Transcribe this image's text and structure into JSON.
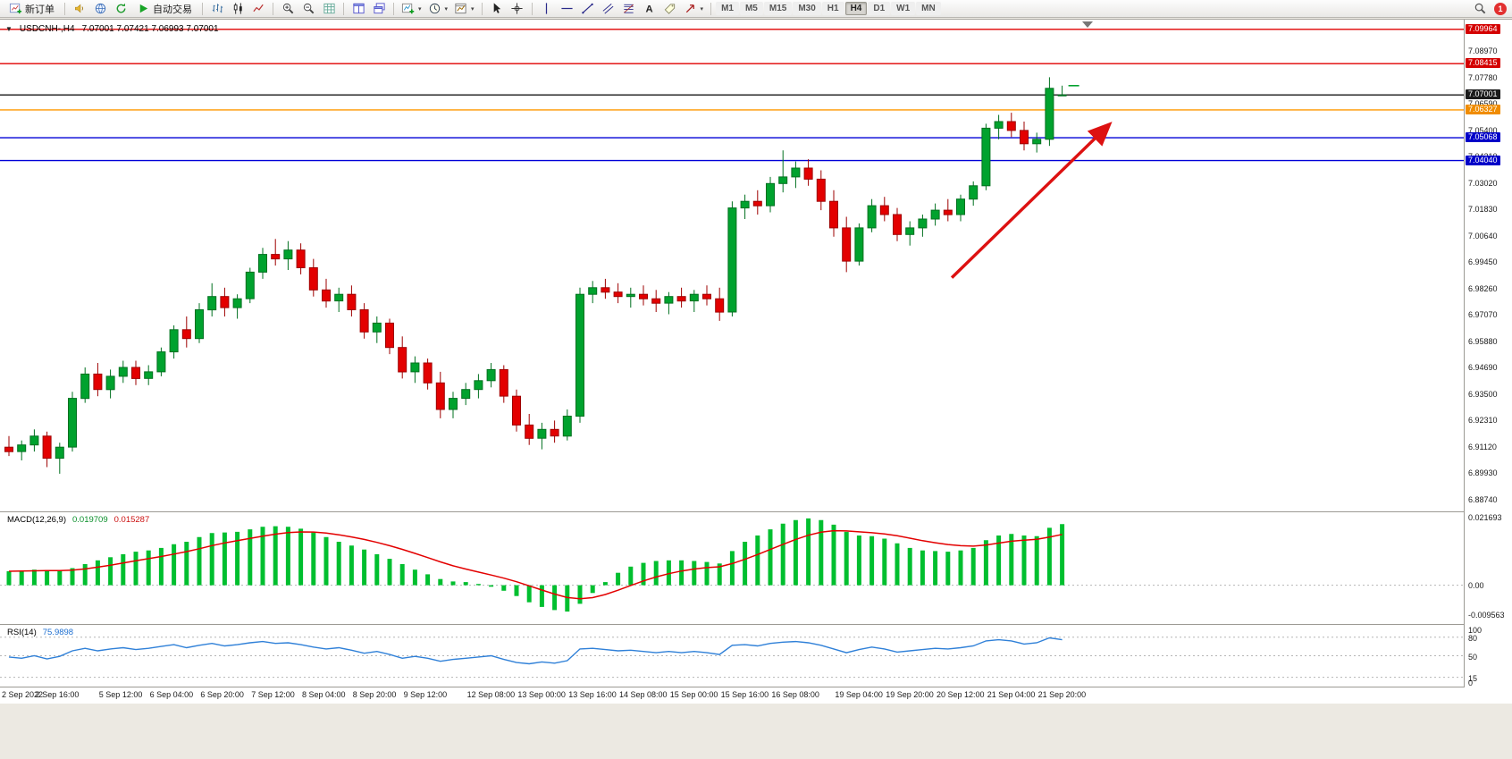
{
  "toolbar": {
    "new_order_label": "新订单",
    "auto_trading_label": "自动交易",
    "timeframes": [
      "M1",
      "M5",
      "M15",
      "M30",
      "H1",
      "H4",
      "D1",
      "W1",
      "MN"
    ],
    "active_timeframe": "H4",
    "notification_count": "1"
  },
  "quote": {
    "symbol_period": "USDCNH-,H4",
    "ohlc": "7.07001 7.07421 7.06993 7.07001"
  },
  "colors": {
    "up": "#00a22e",
    "up_border": "#00701f",
    "down": "#e30000",
    "down_border": "#9e0000",
    "macd_hist": "#00bf2f",
    "macd_signal": "#e30000",
    "rsi_line": "#2f80d8",
    "arrow": "#dd1111"
  },
  "chart_data": [
    {
      "type": "candlestick",
      "title": "USDCNH-,H4",
      "ylim": [
        6.882,
        7.104
      ],
      "ask_tick_price": 7.07421,
      "price_axis_labels": [
        "7.08970",
        "7.07780",
        "7.06590",
        "7.05400",
        "7.04210",
        "7.03020",
        "7.01830",
        "7.00640",
        "6.99450",
        "6.98260",
        "6.97070",
        "6.95880",
        "6.94690",
        "6.93500",
        "6.92310",
        "6.91120",
        "6.89930",
        "6.88740"
      ],
      "hlines": [
        {
          "price": 7.09964,
          "label": "7.09964",
          "line_color": "#e00000",
          "badge_color": "#d40000"
        },
        {
          "price": 7.08415,
          "label": "7.08415",
          "line_color": "#e00000",
          "badge_color": "#d40000"
        },
        {
          "price": 7.07001,
          "label": "7.07001",
          "line_color": "#1a1a1a",
          "badge_color": "#1a1a1a"
        },
        {
          "price": 7.06327,
          "label": "7.06327",
          "line_color": "#ff9800",
          "badge_color": "#f08c00"
        },
        {
          "price": 7.05068,
          "label": "7.05068",
          "line_color": "#0000d8",
          "badge_color": "#0000c8"
        },
        {
          "price": 7.0404,
          "label": "7.04040",
          "line_color": "#0000d8",
          "badge_color": "#0000c8"
        }
      ],
      "trend_arrow": {
        "from_bar": 74.3,
        "from_price": 6.9875,
        "to_bar": 86.6,
        "to_price": 7.056
      },
      "time_labels": [
        {
          "text": "2 Sep 2022",
          "bar": 0
        },
        {
          "text": "2 Sep 16:00",
          "bar": 4
        },
        {
          "text": "5 Sep 12:00",
          "bar": 9
        },
        {
          "text": "6 Sep 04:00",
          "bar": 13
        },
        {
          "text": "6 Sep 20:00",
          "bar": 17
        },
        {
          "text": "7 Sep 12:00",
          "bar": 21
        },
        {
          "text": "8 Sep 04:00",
          "bar": 25
        },
        {
          "text": "8 Sep 20:00",
          "bar": 29
        },
        {
          "text": "9 Sep 12:00",
          "bar": 33
        },
        {
          "text": "12 Sep 08:00",
          "bar": 38
        },
        {
          "text": "13 Sep 00:00",
          "bar": 42
        },
        {
          "text": "13 Sep 16:00",
          "bar": 46
        },
        {
          "text": "14 Sep 08:00",
          "bar": 50
        },
        {
          "text": "15 Sep 00:00",
          "bar": 54
        },
        {
          "text": "15 Sep 16:00",
          "bar": 58
        },
        {
          "text": "16 Sep 08:00",
          "bar": 62
        },
        {
          "text": "19 Sep 04:00",
          "bar": 67
        },
        {
          "text": "19 Sep 20:00",
          "bar": 71
        },
        {
          "text": "20 Sep 12:00",
          "bar": 75
        },
        {
          "text": "21 Sep 04:00",
          "bar": 79
        },
        {
          "text": "21 Sep 20:00",
          "bar": 83
        }
      ],
      "ohlc": [
        [
          6.911,
          6.916,
          6.907,
          6.909
        ],
        [
          6.909,
          6.914,
          6.905,
          6.912
        ],
        [
          6.912,
          6.919,
          6.909,
          6.916
        ],
        [
          6.916,
          6.918,
          6.902,
          6.906
        ],
        [
          6.906,
          6.913,
          6.899,
          6.911
        ],
        [
          6.911,
          6.936,
          6.909,
          6.933
        ],
        [
          6.933,
          6.947,
          6.931,
          6.944
        ],
        [
          6.944,
          6.949,
          6.934,
          6.937
        ],
        [
          6.937,
          6.946,
          6.933,
          6.943
        ],
        [
          6.943,
          6.95,
          6.94,
          6.947
        ],
        [
          6.947,
          6.95,
          6.939,
          6.942
        ],
        [
          6.942,
          6.948,
          6.939,
          6.945
        ],
        [
          6.945,
          6.956,
          6.943,
          6.954
        ],
        [
          6.954,
          6.966,
          6.951,
          6.964
        ],
        [
          6.964,
          6.97,
          6.956,
          6.96
        ],
        [
          6.96,
          6.976,
          6.958,
          6.973
        ],
        [
          6.973,
          6.985,
          6.97,
          6.979
        ],
        [
          6.979,
          6.983,
          6.97,
          6.974
        ],
        [
          6.974,
          6.98,
          6.969,
          6.978
        ],
        [
          6.978,
          6.992,
          6.976,
          6.99
        ],
        [
          6.99,
          7.001,
          6.987,
          6.998
        ],
        [
          6.998,
          7.005,
          6.993,
          6.996
        ],
        [
          6.996,
          7.004,
          6.991,
          7.0
        ],
        [
          7.0,
          7.003,
          6.989,
          6.992
        ],
        [
          6.992,
          6.996,
          6.979,
          6.982
        ],
        [
          6.982,
          6.987,
          6.974,
          6.977
        ],
        [
          6.977,
          6.983,
          6.972,
          6.98
        ],
        [
          6.98,
          6.984,
          6.97,
          6.973
        ],
        [
          6.973,
          6.976,
          6.96,
          6.963
        ],
        [
          6.963,
          6.97,
          6.958,
          6.967
        ],
        [
          6.967,
          6.969,
          6.953,
          6.956
        ],
        [
          6.956,
          6.961,
          6.942,
          6.945
        ],
        [
          6.945,
          6.952,
          6.94,
          6.949
        ],
        [
          6.949,
          6.951,
          6.937,
          6.94
        ],
        [
          6.94,
          6.945,
          6.924,
          6.928
        ],
        [
          6.928,
          6.936,
          6.924,
          6.933
        ],
        [
          6.933,
          6.94,
          6.93,
          6.937
        ],
        [
          6.937,
          6.944,
          6.933,
          6.941
        ],
        [
          6.941,
          6.949,
          6.938,
          6.946
        ],
        [
          6.946,
          6.948,
          6.931,
          6.934
        ],
        [
          6.934,
          6.937,
          6.918,
          6.921
        ],
        [
          6.921,
          6.926,
          6.912,
          6.915
        ],
        [
          6.915,
          6.922,
          6.91,
          6.919
        ],
        [
          6.919,
          6.923,
          6.913,
          6.916
        ],
        [
          6.916,
          6.928,
          6.914,
          6.925
        ],
        [
          6.925,
          6.983,
          6.922,
          6.98
        ],
        [
          6.98,
          6.986,
          6.976,
          6.983
        ],
        [
          6.983,
          6.987,
          6.978,
          6.981
        ],
        [
          6.981,
          6.985,
          6.976,
          6.979
        ],
        [
          6.979,
          6.983,
          6.974,
          6.98
        ],
        [
          6.98,
          6.984,
          6.975,
          6.978
        ],
        [
          6.978,
          6.982,
          6.972,
          6.976
        ],
        [
          6.976,
          6.981,
          6.971,
          6.979
        ],
        [
          6.979,
          6.983,
          6.974,
          6.977
        ],
        [
          6.977,
          6.982,
          6.972,
          6.98
        ],
        [
          6.98,
          6.984,
          6.975,
          6.978
        ],
        [
          6.978,
          6.983,
          6.968,
          6.972
        ],
        [
          6.972,
          7.022,
          6.97,
          7.019
        ],
        [
          7.019,
          7.025,
          7.014,
          7.022
        ],
        [
          7.022,
          7.027,
          7.016,
          7.02
        ],
        [
          7.02,
          7.033,
          7.017,
          7.03
        ],
        [
          7.03,
          7.045,
          7.026,
          7.033
        ],
        [
          7.033,
          7.04,
          7.028,
          7.037
        ],
        [
          7.037,
          7.041,
          7.029,
          7.032
        ],
        [
          7.032,
          7.036,
          7.018,
          7.022
        ],
        [
          7.022,
          7.027,
          7.006,
          7.01
        ],
        [
          7.01,
          7.015,
          6.99,
          6.995
        ],
        [
          6.995,
          7.012,
          6.993,
          7.01
        ],
        [
          7.01,
          7.023,
          7.008,
          7.02
        ],
        [
          7.02,
          7.024,
          7.013,
          7.016
        ],
        [
          7.016,
          7.019,
          7.004,
          7.007
        ],
        [
          7.007,
          7.013,
          7.002,
          7.01
        ],
        [
          7.01,
          7.016,
          7.006,
          7.014
        ],
        [
          7.014,
          7.021,
          7.011,
          7.018
        ],
        [
          7.018,
          7.023,
          7.013,
          7.016
        ],
        [
          7.016,
          7.025,
          7.013,
          7.023
        ],
        [
          7.023,
          7.031,
          7.02,
          7.029
        ],
        [
          7.029,
          7.057,
          7.027,
          7.055
        ],
        [
          7.055,
          7.061,
          7.05,
          7.058
        ],
        [
          7.058,
          7.062,
          7.051,
          7.054
        ],
        [
          7.054,
          7.058,
          7.045,
          7.048
        ],
        [
          7.048,
          7.053,
          7.044,
          7.05
        ],
        [
          7.05,
          7.078,
          7.047,
          7.073
        ],
        [
          7.07001,
          7.07421,
          7.06993,
          7.07001
        ]
      ]
    },
    {
      "type": "bar",
      "name": "MACD(12,26,9)",
      "current_values": [
        "0.019709",
        "0.015287"
      ],
      "ylim": [
        -0.0125,
        0.0235
      ],
      "signal_period": 9,
      "axis_labels": [
        {
          "text": "0.021693",
          "value": 0.021693
        },
        {
          "text": "0.00",
          "value": 0
        },
        {
          "text": "-0.009563",
          "value": -0.009563
        }
      ],
      "values": [
        0.0045,
        0.0047,
        0.005,
        0.0049,
        0.0048,
        0.0055,
        0.0068,
        0.008,
        0.009,
        0.01,
        0.0108,
        0.0112,
        0.012,
        0.0132,
        0.014,
        0.0155,
        0.0168,
        0.017,
        0.0172,
        0.018,
        0.0188,
        0.019,
        0.0188,
        0.0182,
        0.017,
        0.0155,
        0.014,
        0.0128,
        0.0115,
        0.01,
        0.0085,
        0.0068,
        0.005,
        0.0035,
        0.002,
        0.0012,
        0.001,
        0.0004,
        -0.0005,
        -0.0018,
        -0.0035,
        -0.0055,
        -0.007,
        -0.008,
        -0.0085,
        -0.006,
        -0.0025,
        0.001,
        0.004,
        0.006,
        0.0072,
        0.0078,
        0.008,
        0.008,
        0.0078,
        0.0075,
        0.007,
        0.011,
        0.014,
        0.016,
        0.018,
        0.0198,
        0.021,
        0.0215,
        0.021,
        0.0195,
        0.0172,
        0.016,
        0.0158,
        0.015,
        0.0135,
        0.012,
        0.0112,
        0.011,
        0.0108,
        0.0112,
        0.012,
        0.0145,
        0.016,
        0.0165,
        0.016,
        0.0158,
        0.0185,
        0.019709
      ]
    },
    {
      "type": "line",
      "name": "RSI(14)",
      "current_value": "75.9898",
      "ylim": [
        0,
        100
      ],
      "levels": [
        80,
        50,
        15
      ],
      "axis_labels": [
        {
          "text": "100",
          "value": 100
        },
        {
          "text": "80",
          "value": 80
        },
        {
          "text": "50",
          "value": 50
        },
        {
          "text": "15",
          "value": 15
        },
        {
          "text": "0",
          "value": 0
        }
      ],
      "values": [
        48,
        46,
        50,
        45,
        49,
        58,
        62,
        58,
        61,
        63,
        60,
        62,
        65,
        68,
        63,
        67,
        70,
        66,
        68,
        71,
        73,
        70,
        71,
        68,
        64,
        61,
        63,
        59,
        54,
        57,
        52,
        46,
        49,
        46,
        41,
        44,
        46,
        48,
        50,
        44,
        39,
        37,
        40,
        38,
        42,
        61,
        62,
        60,
        58,
        59,
        57,
        55,
        57,
        55,
        57,
        55,
        52,
        67,
        68,
        66,
        70,
        72,
        73,
        71,
        67,
        61,
        55,
        60,
        64,
        61,
        56,
        58,
        60,
        62,
        61,
        63,
        66,
        74,
        76,
        74,
        69,
        71,
        79,
        75.9898
      ]
    }
  ]
}
